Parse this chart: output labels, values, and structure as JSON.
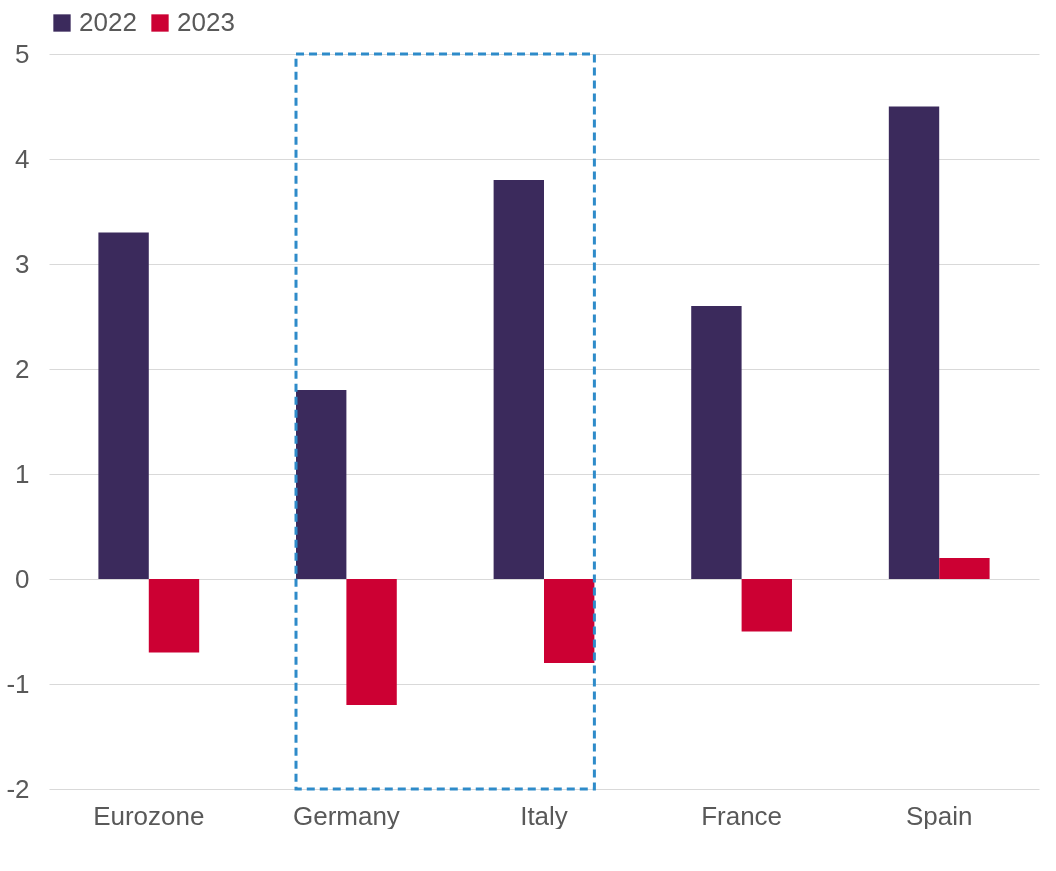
{
  "chart_data": {
    "type": "bar",
    "categories": [
      "Eurozone",
      "Germany",
      "Italy",
      "France",
      "Spain"
    ],
    "series": [
      {
        "name": "2022",
        "color": "#3b2a5c",
        "values": [
          3.3,
          1.8,
          3.8,
          2.6,
          4.5
        ]
      },
      {
        "name": "2023",
        "color": "#cc0033",
        "values": [
          -0.7,
          -1.2,
          -0.8,
          -0.5,
          0.2
        ]
      }
    ],
    "ylim": [
      -2,
      5
    ],
    "yticks": [
      -2,
      -1,
      0,
      1,
      2,
      3,
      4,
      5
    ],
    "grid": "y",
    "legend": "top"
  }
}
